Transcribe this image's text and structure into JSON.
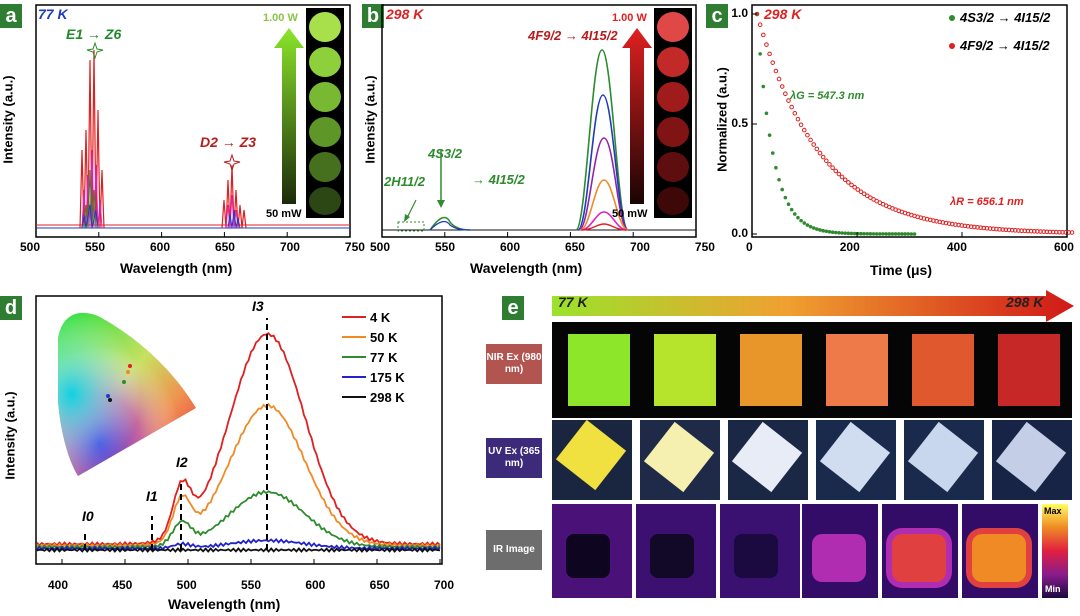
{
  "panel_labels": {
    "a": "a",
    "b": "b",
    "c": "c",
    "d": "d",
    "e": "e"
  },
  "panel_a": {
    "temp": "77 K",
    "ylabel": "Intensity (a.u.)",
    "xlabel": "Wavelength (nm)",
    "xticks": [
      "500",
      "550",
      "600",
      "650",
      "700",
      "750"
    ],
    "annot_e1": "E1 → Z6",
    "annot_d2": "D2 → Z3",
    "power_high": "1.00 W",
    "power_low": "50 mW",
    "colors": {
      "green": "#1f8a2b",
      "red": "#b71c1c"
    }
  },
  "panel_b": {
    "temp": "298 K",
    "ylabel": "Intensity (a.u.)",
    "xlabel": "Wavelength (nm)",
    "xticks": [
      "500",
      "550",
      "600",
      "650",
      "700",
      "750"
    ],
    "annot_f": "4F9/2 → 4I15/2",
    "annot_h": "2H11/2",
    "annot_s": "4S3/2",
    "annot_i": "→ 4I15/2",
    "power_high": "1.00 W",
    "power_low": "50 mW"
  },
  "panel_c": {
    "temp": "298 K",
    "ylabel": "Normalized (a.u.)",
    "xlabel": "Time (μs)",
    "xticks": [
      "0",
      "200",
      "400",
      "600"
    ],
    "yticks": [
      "0.0",
      "0.5",
      "1.0"
    ],
    "legend_green": "4S3/2 → 4I15/2",
    "legend_red": "4F9/2 → 4I15/2",
    "lambda_g": "λG = 547.3 nm",
    "lambda_r": "λR = 656.1 nm"
  },
  "panel_d": {
    "ylabel": "Intensity (a.u.)",
    "xlabel": "Wavelength (nm)",
    "xticks": [
      "400",
      "450",
      "500",
      "550",
      "600",
      "650",
      "700"
    ],
    "legend": [
      "4 K",
      "50 K",
      "77 K",
      "175 K",
      "298 K"
    ],
    "legend_colors": [
      "#e02020",
      "#f08a24",
      "#2e8b2e",
      "#2222cc",
      "#111111"
    ],
    "peaks": {
      "i0": "I0",
      "i1": "I1",
      "i2": "I2",
      "i3": "I3"
    }
  },
  "panel_e": {
    "temp_start": "77 K",
    "temp_end": "298 K",
    "row_nir": "NIR Ex (980 nm)",
    "row_uv": "UV Ex (365 nm)",
    "row_ir": "IR Image",
    "scale_max": "Max",
    "scale_min": "Min",
    "nir_colors": [
      "#8ee62a",
      "#b6e42c",
      "#e8962a",
      "#ee7a4a",
      "#e0582e",
      "#c62828"
    ]
  }
}
